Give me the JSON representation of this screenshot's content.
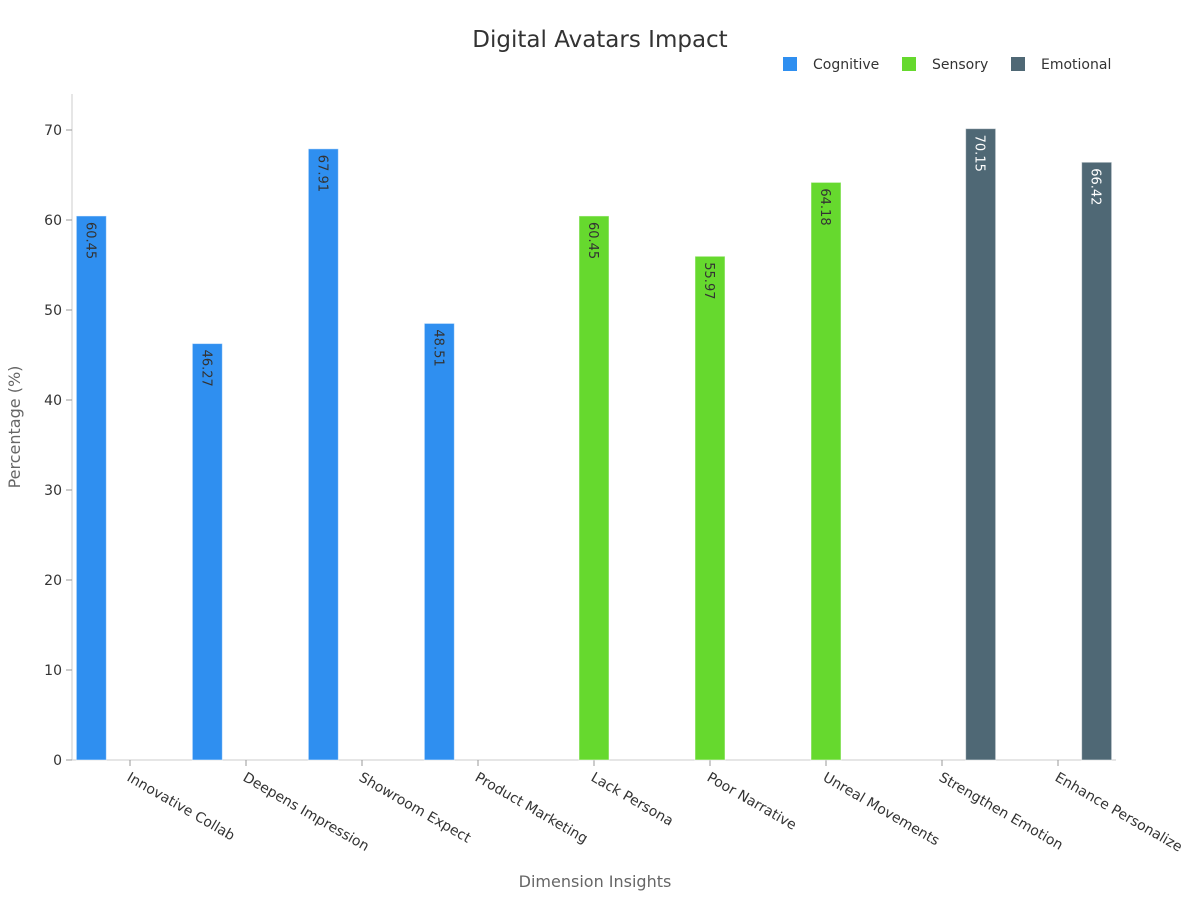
{
  "chart_data": {
    "type": "bar",
    "title": "Digital Avatars Impact",
    "xlabel": "Dimension Insights",
    "ylabel": "Percentage (%)",
    "ylim": [
      0,
      74
    ],
    "yticks": [
      0,
      10,
      20,
      30,
      40,
      50,
      60,
      70
    ],
    "grid": false,
    "legend_position": "top-right",
    "categories": [
      "Innovative Collab",
      "Deepens Impression",
      "Showroom Expect",
      "Product Marketing",
      "Lack Persona",
      "Poor Narrative",
      "Unreal Movements",
      "Strengthen Emotion",
      "Enhance Personalize"
    ],
    "series": [
      {
        "name": "Cognitive",
        "color": "#2f8ff0",
        "label_color": "#333333",
        "values": [
          60.45,
          46.27,
          67.91,
          48.51,
          null,
          null,
          null,
          null,
          null
        ]
      },
      {
        "name": "Sensory",
        "color": "#66d92e",
        "label_color": "#333333",
        "values": [
          null,
          null,
          null,
          null,
          60.45,
          55.97,
          64.18,
          null,
          null
        ]
      },
      {
        "name": "Emotional",
        "color": "#4f6875",
        "label_color": "#ffffff",
        "values": [
          null,
          null,
          null,
          null,
          null,
          null,
          null,
          70.15,
          66.42
        ]
      }
    ]
  }
}
